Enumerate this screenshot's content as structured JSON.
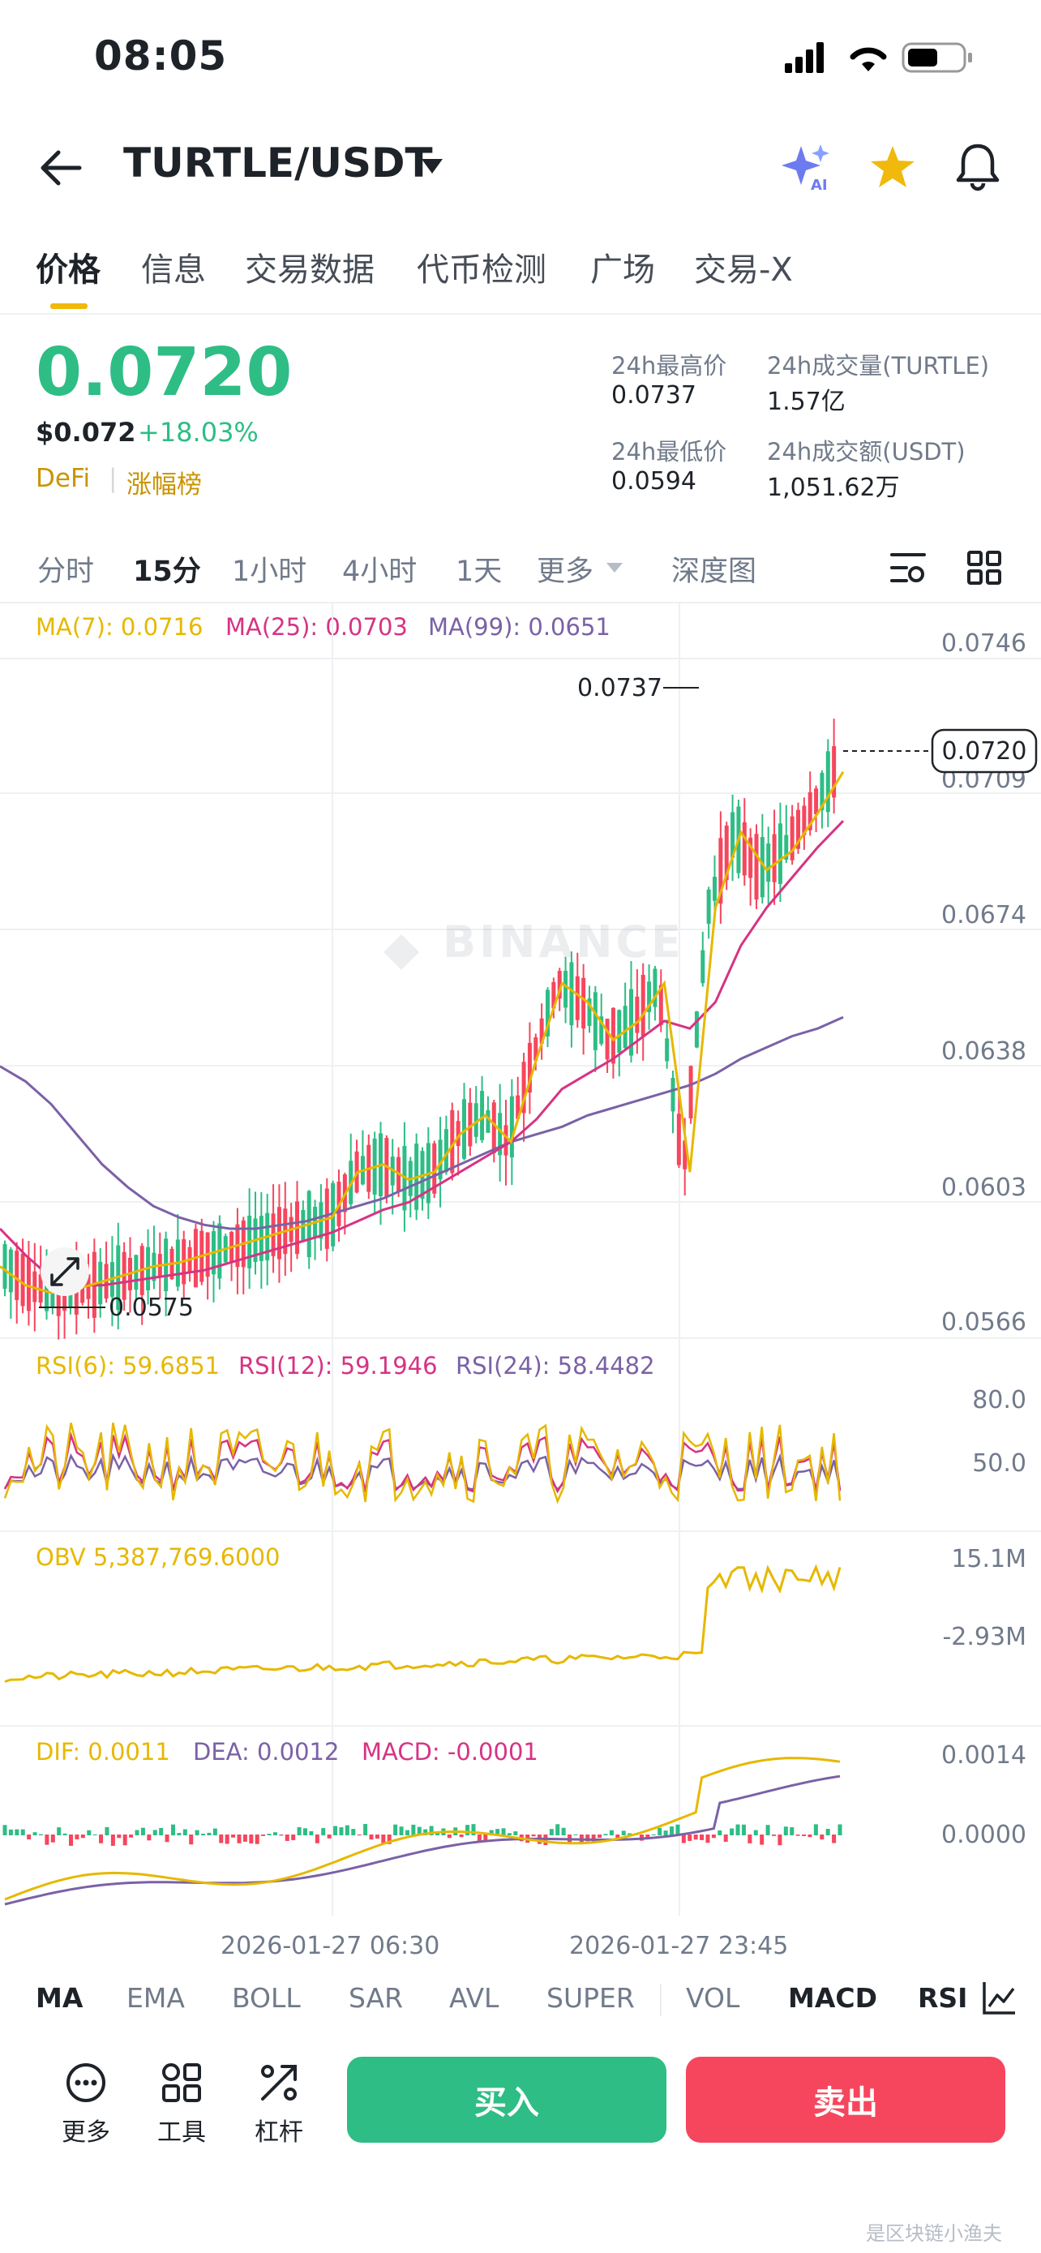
{
  "status_bar": {
    "time": "08:05"
  },
  "header": {
    "pair": "TURTLE/USDT"
  },
  "tabs": [
    "价格",
    "信息",
    "交易数据",
    "代币检测",
    "广场",
    "交易-X"
  ],
  "price": {
    "last": "0.0720",
    "usd": "$0.072",
    "change": "+18.03%",
    "tag": "DeFi",
    "rank": "涨幅榜"
  },
  "stats": {
    "high_label": "24h最高价",
    "high": "0.0737",
    "vol_base_label": "24h成交量(TURTLE)",
    "vol_base": "1.57亿",
    "low_label": "24h最低价",
    "low": "0.0594",
    "vol_quote_label": "24h成交额(USDT)",
    "vol_quote": "1,051.62万"
  },
  "timeframes": [
    "分时",
    "15分",
    "1小时",
    "4小时",
    "1天",
    "更多",
    "深度图"
  ],
  "ma_legend": {
    "ma7": "MA(7): 0.0716",
    "ma25": "MA(25): 0.0703",
    "ma99": "MA(99): 0.0651"
  },
  "price_axis": [
    "0.0746",
    "0.0709",
    "0.0674",
    "0.0638",
    "0.0603",
    "0.0566"
  ],
  "current_price_tag": "0.0720",
  "watermark": "BINANCE",
  "markers": {
    "high": "0.0737",
    "low": "0.0575"
  },
  "rsi": {
    "rsi6": "RSI(6): 59.6851",
    "rsi12": "RSI(12): 59.1946",
    "rsi24": "RSI(24): 58.4482",
    "axis_high": "80.0",
    "axis_mid": "50.0"
  },
  "obv": {
    "label": "OBV 5,387,769.6000",
    "axis_high": "15.1M",
    "axis_low": "-2.93M"
  },
  "macd": {
    "dif": "DIF: 0.0011",
    "dea": "DEA: 0.0012",
    "macd": "MACD: -0.0001",
    "axis_high": "0.0014",
    "axis_zero": "0.0000"
  },
  "dates": [
    "2026-01-27 06:30",
    "2026-01-27 23:45"
  ],
  "indicator_tabs": [
    "MA",
    "EMA",
    "BOLL",
    "SAR",
    "AVL",
    "SUPER",
    "VOL",
    "MACD",
    "RSI"
  ],
  "tools": [
    "更多",
    "工具",
    "杠杆"
  ],
  "actions": {
    "buy": "买入",
    "sell": "卖出"
  },
  "footer_watermark": "是区块链小渔夫",
  "colors": {
    "up": "#2ebd85",
    "down": "#f6465d",
    "accent": "#f0b90b",
    "ma7": "#e6b800",
    "ma25": "#d63384",
    "ma99": "#7b61a6"
  },
  "chart_data": {
    "type": "candlestick",
    "price_range": [
      0.0566,
      0.0746
    ],
    "series": [
      {
        "name": "MA(7)",
        "values": [
          0.0585,
          0.058,
          0.0578,
          0.0579,
          0.0581,
          0.0583,
          0.0585,
          0.0586,
          0.0588,
          0.059,
          0.0592,
          0.0594,
          0.0596,
          0.0598,
          0.061,
          0.0612,
          0.0608,
          0.061,
          0.062,
          0.0625,
          0.0618,
          0.064,
          0.066,
          0.0655,
          0.0645,
          0.065,
          0.066,
          0.061,
          0.068,
          0.07,
          0.069,
          0.0695,
          0.0705,
          0.0716
        ]
      },
      {
        "name": "MA(25)",
        "values": [
          0.0595,
          0.0588,
          0.0582,
          0.058,
          0.058,
          0.0581,
          0.0582,
          0.0583,
          0.0584,
          0.0586,
          0.0588,
          0.059,
          0.0592,
          0.0594,
          0.0597,
          0.06,
          0.0602,
          0.0606,
          0.061,
          0.0614,
          0.0618,
          0.0624,
          0.0632,
          0.0636,
          0.064,
          0.0645,
          0.065,
          0.0648,
          0.0655,
          0.067,
          0.068,
          0.0688,
          0.0696,
          0.0703
        ]
      },
      {
        "name": "MA(99)",
        "values": [
          0.0638,
          0.0634,
          0.0628,
          0.062,
          0.0612,
          0.0606,
          0.0601,
          0.0598,
          0.0596,
          0.0595,
          0.0595,
          0.0596,
          0.0597,
          0.0599,
          0.0601,
          0.0603,
          0.0606,
          0.0609,
          0.0612,
          0.0615,
          0.0618,
          0.062,
          0.0622,
          0.0625,
          0.0627,
          0.0629,
          0.0631,
          0.0633,
          0.0636,
          0.064,
          0.0643,
          0.0646,
          0.0648,
          0.0651
        ]
      }
    ]
  }
}
